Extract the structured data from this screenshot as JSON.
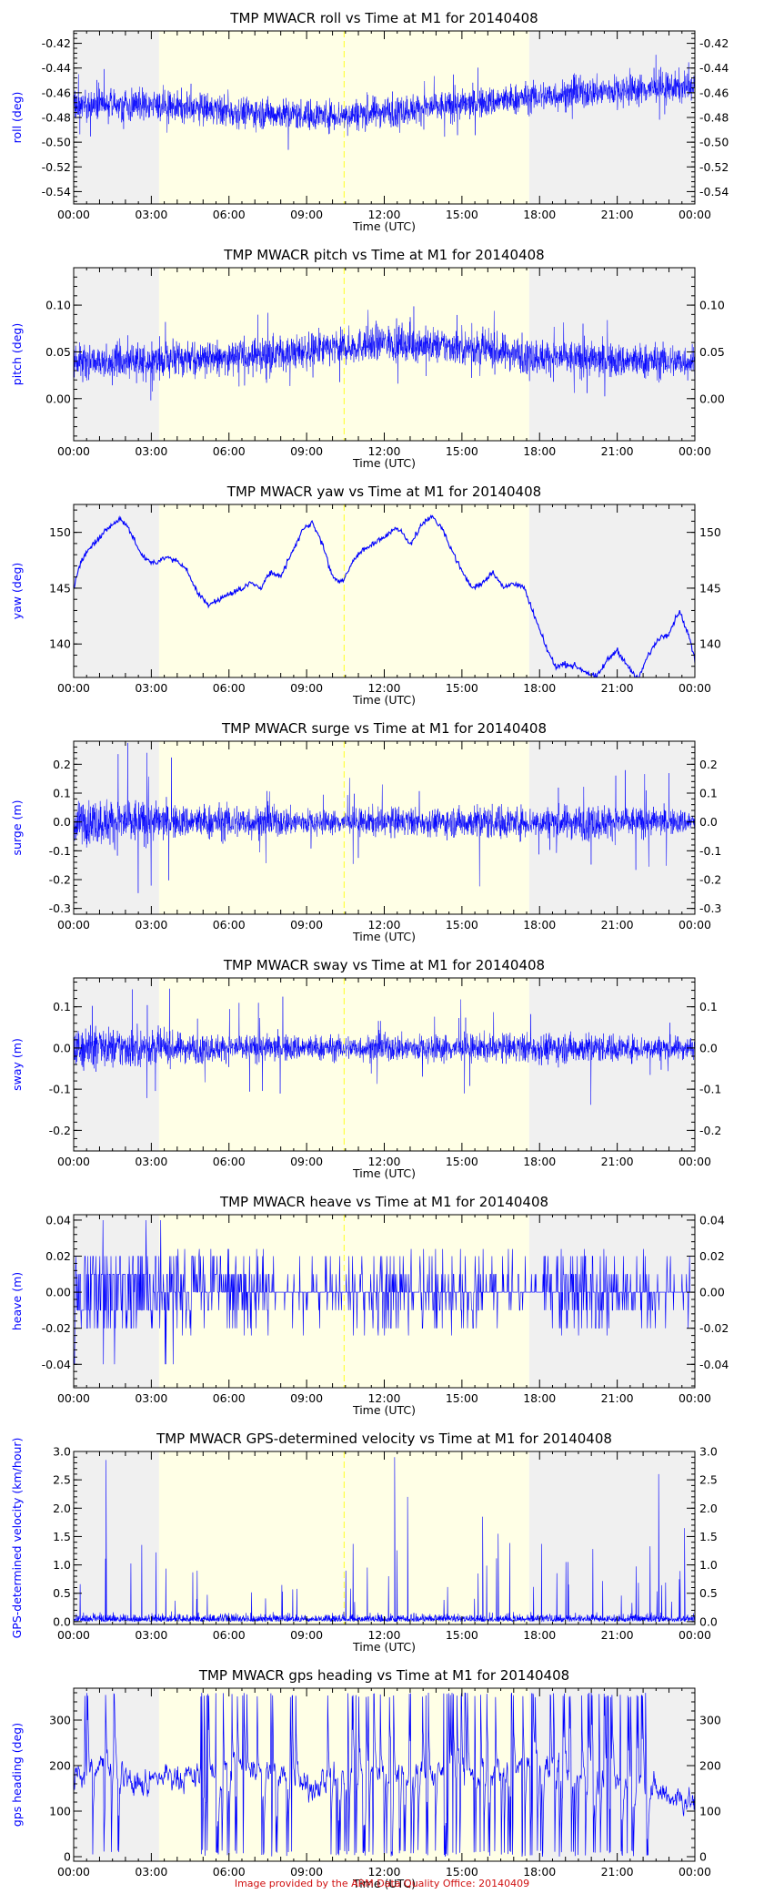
{
  "credit": "Image provided by the ARM Data Quality Office: 20140409",
  "colors": {
    "data": "#0000ff",
    "night_shade": "#f0f0f0",
    "day_shade": "#ffffe6",
    "marker": "#ffff44",
    "axes": "#000000",
    "credit": "#d01010"
  },
  "time_axis": {
    "label": "Time (UTC)",
    "ticks": [
      "00:00",
      "03:00",
      "06:00",
      "09:00",
      "12:00",
      "15:00",
      "18:00",
      "21:00",
      "00:00"
    ],
    "range_hours": [
      0,
      24
    ]
  },
  "shading": {
    "night_before_hours": [
      0,
      3.3
    ],
    "day_hours": [
      3.3,
      17.6
    ],
    "night_after_hours": [
      17.6,
      24
    ],
    "marker_hour": 10.45
  },
  "chart_data": [
    {
      "type": "line",
      "title": "TMP MWACR roll vs Time at M1 for 20140408",
      "ylabel": "roll (deg)",
      "ylim": [
        -0.55,
        -0.41
      ],
      "yticks": [
        -0.54,
        -0.52,
        -0.5,
        -0.48,
        -0.46,
        -0.44,
        -0.42
      ],
      "ytick_labels": [
        "-0.54",
        "-0.52",
        "-0.50",
        "-0.48",
        "-0.46",
        "-0.44",
        "-0.42"
      ],
      "style": "noise",
      "mean_x": [
        0,
        3,
        6,
        9,
        10.5,
        12,
        15,
        18,
        21,
        24
      ],
      "mean_y": [
        -0.47,
        -0.47,
        -0.475,
        -0.478,
        -0.478,
        -0.475,
        -0.47,
        -0.463,
        -0.458,
        -0.455
      ],
      "spread": 0.012,
      "spikes": 0.03,
      "marker": true
    },
    {
      "type": "line",
      "title": "TMP MWACR pitch vs Time at M1 for 20140408",
      "ylabel": "pitch (deg)",
      "ylim": [
        -0.045,
        0.14
      ],
      "yticks": [
        0.0,
        0.05,
        0.1
      ],
      "ytick_labels": [
        "0.00",
        "0.05",
        "0.10"
      ],
      "style": "noise",
      "mean_x": [
        0,
        3,
        6,
        9,
        12,
        15,
        18,
        21,
        24
      ],
      "mean_y": [
        0.04,
        0.04,
        0.045,
        0.05,
        0.06,
        0.055,
        0.045,
        0.04,
        0.04
      ],
      "spread": 0.018,
      "spikes": 0.045,
      "marker": true
    },
    {
      "type": "line",
      "title": "TMP MWACR yaw vs Time at M1 for 20140408",
      "ylabel": "yaw (deg)",
      "ylim": [
        137,
        152.5
      ],
      "yticks": [
        140,
        145,
        150
      ],
      "ytick_labels": [
        "140",
        "145",
        "150"
      ],
      "style": "curve",
      "x": [
        0,
        0.3,
        0.6,
        1.0,
        1.4,
        1.8,
        2.1,
        2.5,
        2.8,
        3.2,
        3.6,
        4.0,
        4.4,
        4.8,
        5.2,
        5.6,
        6.0,
        6.4,
        6.8,
        7.2,
        7.6,
        8.0,
        8.4,
        8.8,
        9.2,
        9.6,
        10.0,
        10.4,
        10.8,
        11.2,
        11.6,
        12.0,
        12.5,
        13.0,
        13.4,
        13.8,
        14.2,
        14.6,
        15.0,
        15.4,
        15.8,
        16.2,
        16.6,
        17.0,
        17.4,
        17.8,
        18.2,
        18.6,
        19.0,
        19.4,
        19.8,
        20.2,
        20.6,
        21.0,
        21.4,
        21.8,
        22.2,
        22.6,
        23.0,
        23.4,
        23.8,
        24.0
      ],
      "y": [
        145,
        147.5,
        148.5,
        149.5,
        150.5,
        151.2,
        150.5,
        148.5,
        147.5,
        147.3,
        147.8,
        147.5,
        146.5,
        144.5,
        143.5,
        144.0,
        144.5,
        144.8,
        145.5,
        145.0,
        146.5,
        146.0,
        148.0,
        150.0,
        151.0,
        149.0,
        146.0,
        145.5,
        147.5,
        148.5,
        149.0,
        149.5,
        150.5,
        149.0,
        150.5,
        151.5,
        150.5,
        148.5,
        146.5,
        145.0,
        145.5,
        146.5,
        145.0,
        145.5,
        145.0,
        142.5,
        140.0,
        138.0,
        138.2,
        138.0,
        137.5,
        137.0,
        138.5,
        139.5,
        138.0,
        136.8,
        139.0,
        140.5,
        141.0,
        143.0,
        140.5,
        138.5
      ],
      "jitter": 0.25,
      "marker": true
    },
    {
      "type": "line",
      "title": "TMP MWACR surge vs Time at M1 for 20140408",
      "ylabel": "surge (m)",
      "ylim": [
        -0.32,
        0.28
      ],
      "yticks": [
        -0.3,
        -0.2,
        -0.1,
        0.0,
        0.1,
        0.2
      ],
      "ytick_labels": [
        "-0.3",
        "-0.2",
        "-0.1",
        "0.0",
        "0.1",
        "0.2"
      ],
      "style": "noise",
      "mean_x": [
        0,
        24
      ],
      "mean_y": [
        0.0,
        0.0
      ],
      "spread": 0.055,
      "spikes": 0.22,
      "envelope_x": [
        0,
        2,
        4,
        6,
        8,
        10,
        12,
        14,
        16,
        18,
        20,
        22,
        24
      ],
      "envelope_y": [
        1.3,
        1.5,
        1.0,
        1.1,
        0.9,
        0.7,
        0.9,
        0.8,
        1.1,
        0.9,
        1.1,
        0.9,
        0.7
      ],
      "marker": true
    },
    {
      "type": "line",
      "title": "TMP MWACR sway vs Time at M1 for 20140408",
      "ylabel": "sway (m)",
      "ylim": [
        -0.25,
        0.17
      ],
      "yticks": [
        -0.2,
        -0.1,
        0.0,
        0.1
      ],
      "ytick_labels": [
        "-0.2",
        "-0.1",
        "0.0",
        "0.1"
      ],
      "style": "noise",
      "mean_x": [
        0,
        24
      ],
      "mean_y": [
        0.0,
        0.0
      ],
      "spread": 0.032,
      "spikes": 0.13,
      "envelope_x": [
        0,
        2,
        4,
        6,
        8,
        10,
        12,
        14,
        16,
        18,
        20,
        22,
        24
      ],
      "envelope_y": [
        1.4,
        1.5,
        1.1,
        1.0,
        1.0,
        0.9,
        1.0,
        1.0,
        1.0,
        1.1,
        1.1,
        0.9,
        0.8
      ],
      "marker": true
    },
    {
      "type": "line",
      "title": "TMP MWACR heave vs Time at M1 for 20140408",
      "ylabel": "heave (m)",
      "ylim": [
        -0.053,
        0.043
      ],
      "yticks": [
        -0.04,
        -0.02,
        0.0,
        0.02,
        0.04
      ],
      "ytick_labels": [
        "-0.04",
        "-0.02",
        "0.00",
        "0.02",
        "0.04"
      ],
      "style": "steps",
      "levels": [
        -0.04,
        -0.02,
        -0.01,
        0.0,
        0.01,
        0.02,
        0.04
      ],
      "activity_x": [
        0,
        1.5,
        3,
        3.3,
        5,
        6.5,
        7,
        8,
        10,
        11,
        12,
        13,
        14,
        15,
        16,
        17.6,
        18.5,
        20,
        21,
        22,
        23,
        24
      ],
      "activity_y": [
        1.0,
        1.0,
        0.9,
        0.6,
        0.5,
        0.7,
        0.3,
        0.15,
        0.2,
        0.25,
        0.55,
        0.5,
        0.35,
        0.3,
        0.2,
        0.2,
        0.5,
        0.55,
        0.35,
        0.25,
        0.15,
        0.1
      ],
      "marker": true
    },
    {
      "type": "line",
      "title": "TMP MWACR GPS-determined velocity vs Time at M1 for 20140408",
      "ylabel": "GPS-determined velocity (km/hour)",
      "ylim": [
        -0.05,
        3.0
      ],
      "yticks": [
        0.0,
        0.5,
        1.0,
        1.5,
        2.0,
        2.5,
        3.0
      ],
      "ytick_labels": [
        "0.0",
        "0.5",
        "1.0",
        "1.5",
        "2.0",
        "2.5",
        "3.0"
      ],
      "style": "velocity",
      "baseline": 0.12,
      "big_spikes_x": [
        1.25,
        12.4,
        12.9,
        15.8,
        16.4,
        22.6,
        23.6
      ],
      "big_spikes_y": [
        2.85,
        2.9,
        2.2,
        1.85,
        1.55,
        2.6,
        1.65
      ],
      "marker": true
    },
    {
      "type": "line",
      "title": "TMP MWACR gps heading vs Time at M1 for 20140408",
      "ylabel": "gps heading (deg)",
      "ylim": [
        -10,
        370
      ],
      "yticks": [
        0,
        100,
        200,
        300
      ],
      "ytick_labels": [
        "0",
        "100",
        "200",
        "300"
      ],
      "style": "heading",
      "mean_x": [
        0,
        1.5,
        2.5,
        3.5,
        5,
        7,
        9,
        10,
        12,
        15,
        18,
        20,
        22,
        24
      ],
      "mean_y": [
        180,
        200,
        150,
        180,
        170,
        200,
        150,
        180,
        190,
        180,
        200,
        180,
        150,
        120
      ],
      "marker": false
    }
  ]
}
